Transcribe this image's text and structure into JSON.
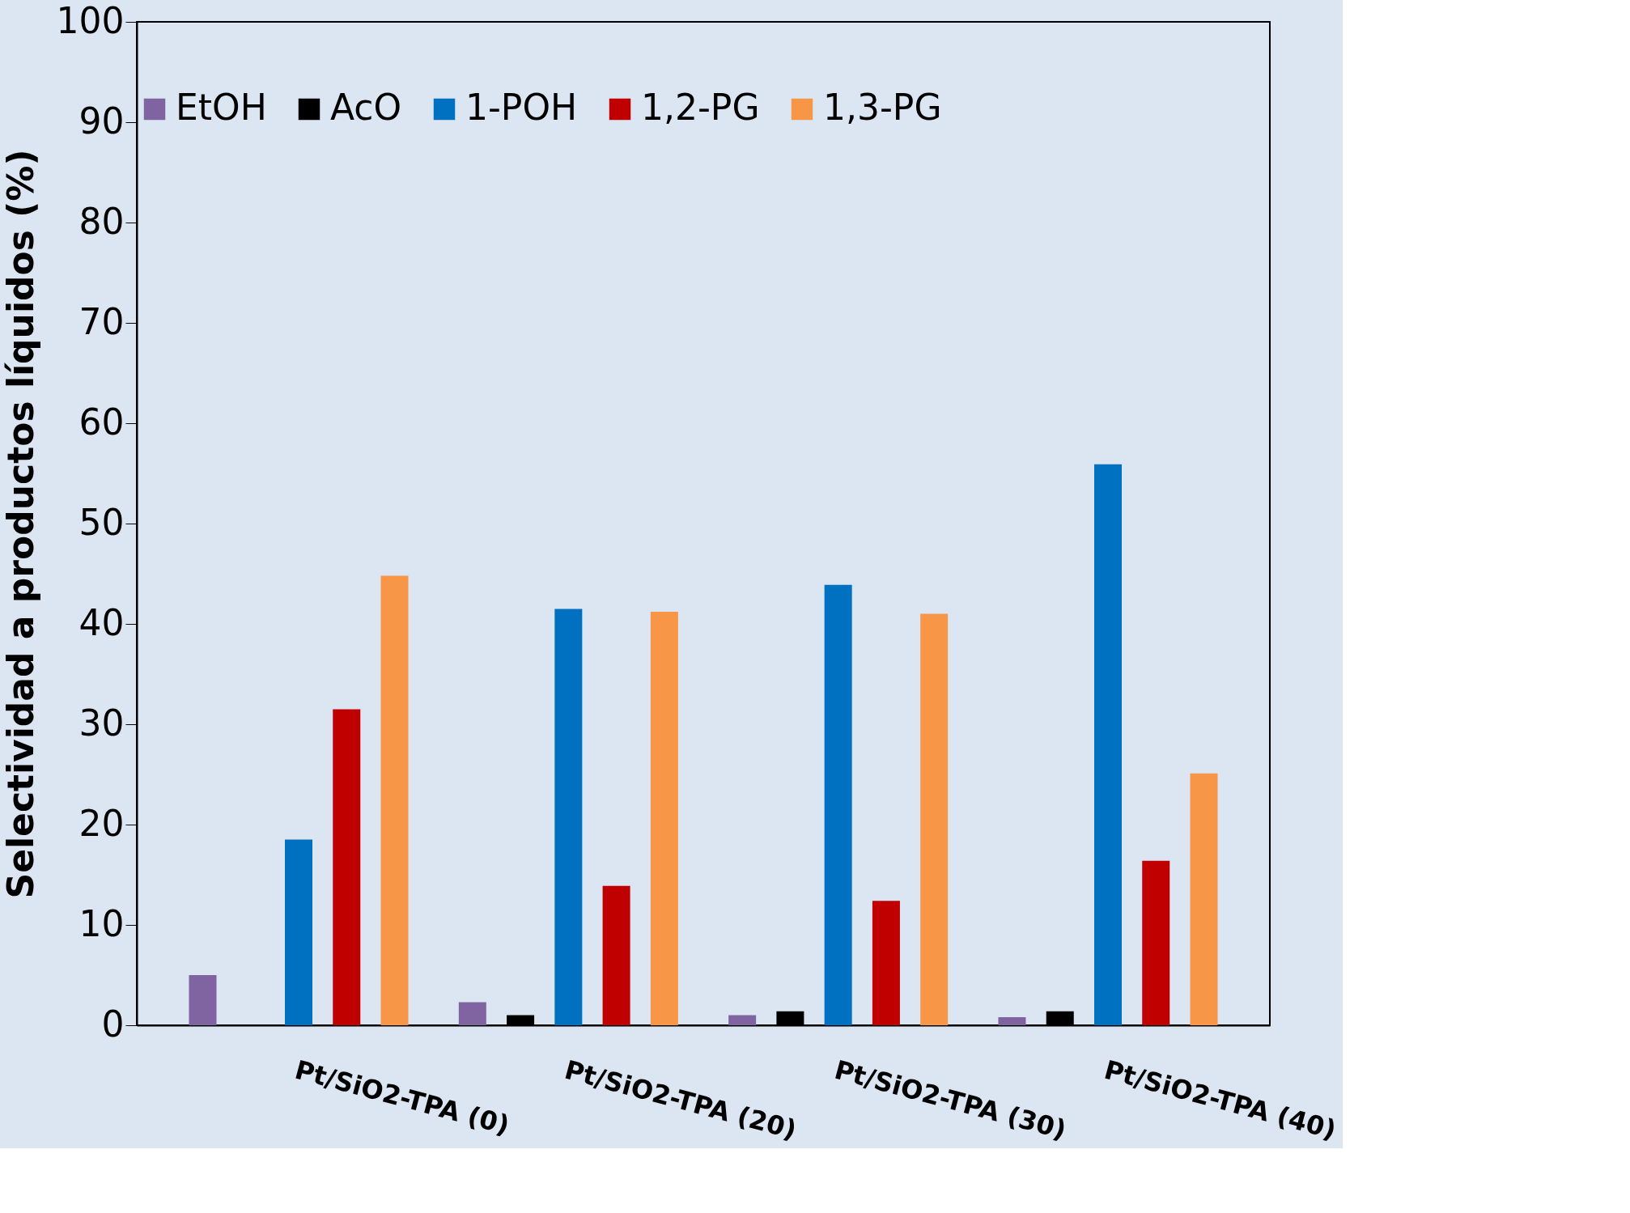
{
  "chart_data": {
    "type": "bar",
    "ylabel": "Selectividad a productos líquidos (%)",
    "categories": [
      "Pt/SiO2-TPA (0)",
      "Pt/SiO2-TPA (20)",
      "Pt/SiO2-TPA (30)",
      "Pt/SiO2-TPA (40)"
    ],
    "series": [
      {
        "name": "EtOH",
        "color": "#8064a2",
        "values": [
          5.0,
          2.3,
          1.0,
          0.8
        ]
      },
      {
        "name": "AcO",
        "color": "#000000",
        "values": [
          0,
          1.0,
          1.4,
          1.4
        ]
      },
      {
        "name": "1-POH",
        "color": "#0070c0",
        "values": [
          18.5,
          41.5,
          43.9,
          55.9
        ]
      },
      {
        "name": "1,2-PG",
        "color": "#c00000",
        "values": [
          31.5,
          13.9,
          12.4,
          16.4
        ]
      },
      {
        "name": "1,3-PG",
        "color": "#f79646",
        "values": [
          44.8,
          41.2,
          41.0,
          25.1
        ]
      }
    ],
    "ylim": [
      0,
      100
    ],
    "yticks": [
      0,
      10,
      20,
      30,
      40,
      50,
      60,
      70,
      80,
      90,
      100
    ],
    "grid": false,
    "legend": "top"
  }
}
